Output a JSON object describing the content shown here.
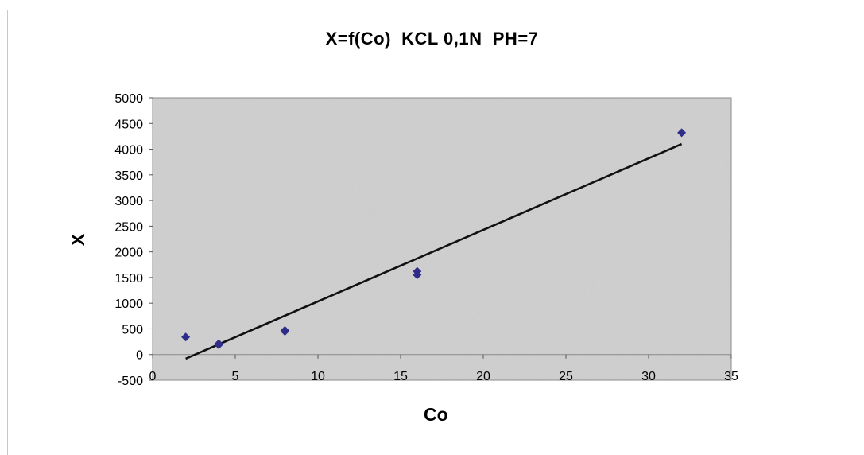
{
  "chart_data": {
    "type": "scatter",
    "title": "X=f(Co)  KCL 0,1N  PH=7",
    "xlabel": "Co",
    "ylabel": "X",
    "xlim": [
      0,
      35
    ],
    "ylim": [
      -500,
      5000
    ],
    "x_ticks": [
      0,
      5,
      10,
      15,
      20,
      25,
      30,
      35
    ],
    "y_ticks": [
      -500,
      0,
      500,
      1000,
      1500,
      2000,
      2500,
      3000,
      3500,
      4000,
      4500,
      5000
    ],
    "grid": false,
    "legend": "none",
    "series": [
      {
        "type": "scatter",
        "marker": "diamond",
        "color": "#2e2e8a",
        "x": [
          2,
          4,
          4,
          8,
          8,
          16,
          16,
          32
        ],
        "y": [
          340,
          190,
          210,
          450,
          470,
          1550,
          1620,
          4320
        ]
      },
      {
        "type": "line",
        "color": "#111111",
        "x": [
          2,
          32
        ],
        "y": [
          -80,
          4100
        ]
      }
    ],
    "plot_background": "#cfcfcf"
  }
}
